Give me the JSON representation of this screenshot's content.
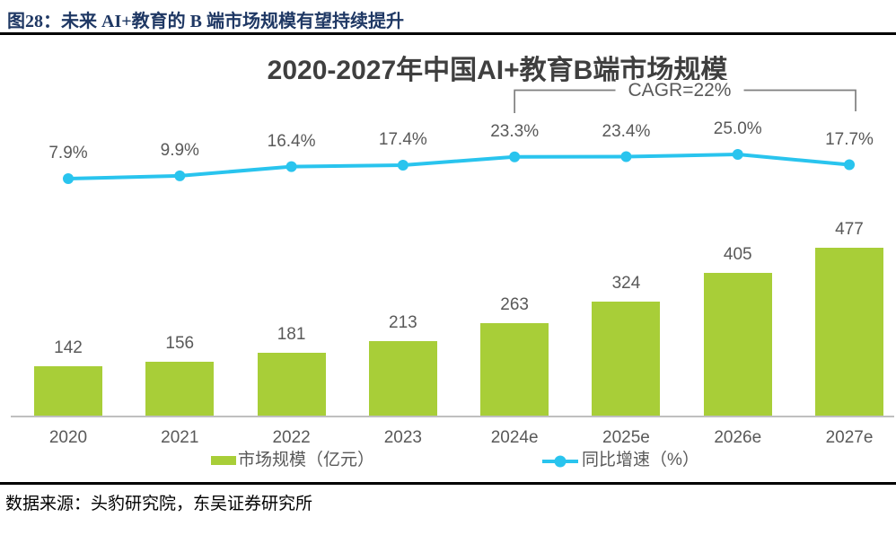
{
  "page": {
    "header_label": "图28：",
    "header_title": "未来 AI+教育的 B 端市场规模有望持续提升",
    "source": "数据来源：头豹研究院，东吴证券研究所"
  },
  "chart_data": {
    "type": "bar",
    "subtype": "bar-line-combo",
    "title": "2020-2027年中国AI+教育B端市场规模",
    "categories": [
      "2020",
      "2021",
      "2022",
      "2023",
      "2024e",
      "2025e",
      "2026e",
      "2027e"
    ],
    "series": [
      {
        "name": "市场规模（亿元）",
        "type": "bar",
        "values": [
          142,
          156,
          181,
          213,
          263,
          324,
          405,
          477
        ],
        "color": "#a8ce38"
      },
      {
        "name": "同比增速（%）",
        "type": "line",
        "values": [
          7.9,
          9.9,
          16.4,
          17.4,
          23.3,
          23.4,
          25.0,
          17.7
        ],
        "labels": [
          "7.9%",
          "9.9%",
          "16.4%",
          "17.4%",
          "23.3%",
          "23.4%",
          "25.0%",
          "17.7%"
        ],
        "color": "#29c4ee"
      }
    ],
    "annotation": {
      "text": "CAGR=22%",
      "from_category": "2024e",
      "to_category": "2027e",
      "color": "#7f7f7f"
    },
    "xlabel": "",
    "ylabel": "",
    "legend_position": "bottom",
    "gridlines": false,
    "y_axis_visible": false
  }
}
